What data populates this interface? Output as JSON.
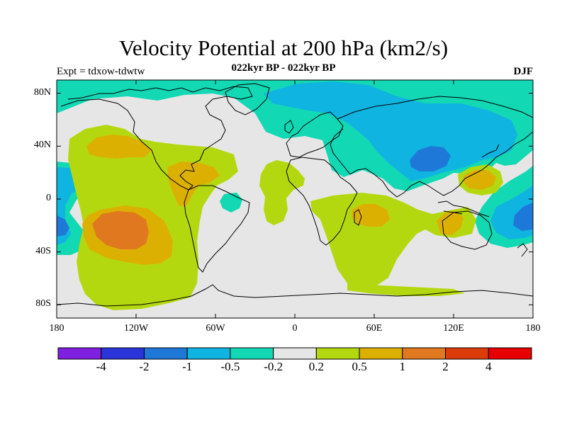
{
  "title": "Velocity Potential at 200 hPa (km2/s)",
  "subtitle": "022kyr BP - 022kyr BP",
  "left_string": "Expt = tdxow-tdwtw",
  "right_string": "DJF",
  "lat_labels": [
    "80N",
    "40N",
    "0",
    "40S",
    "80S"
  ],
  "lon_labels": [
    "180",
    "120W",
    "60W",
    "0",
    "60E",
    "120E",
    "180"
  ],
  "colorbar": {
    "colors": [
      "#7f1fdf",
      "#2a34d8",
      "#1e78d8",
      "#10b4e0",
      "#12d8b4",
      "#e6e6e6",
      "#b4d810",
      "#dcb000",
      "#e07820",
      "#dc3c0a",
      "#e80000"
    ],
    "labels": [
      "-4",
      "-2",
      "-1",
      "-0.5",
      "-0.2",
      "0.2",
      "0.5",
      "1",
      "2",
      "4"
    ]
  },
  "map": {
    "background_color": "#e6e6e6",
    "coastline_color": "#000000",
    "lon_range": [
      -180,
      180
    ],
    "lat_range": [
      -90,
      90
    ]
  }
}
